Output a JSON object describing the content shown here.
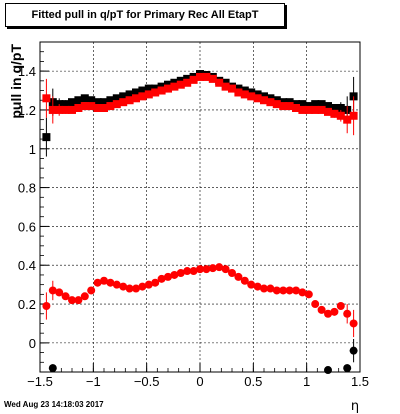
{
  "chart_data": {
    "type": "scatter",
    "title": "Fitted pull in q/pT for Primary Rec All EtapT",
    "xlabel": "η",
    "ylabel": "pull in q/pT",
    "xlim": [
      -1.5,
      1.5
    ],
    "ylim": [
      -0.15,
      1.55
    ],
    "grid": true,
    "legend": "none",
    "x_ticks": [
      {
        "v": -1.5,
        "label": "−1.5"
      },
      {
        "v": -1,
        "label": "−1"
      },
      {
        "v": -0.5,
        "label": "−0.5"
      },
      {
        "v": 0,
        "label": "0"
      },
      {
        "v": 0.5,
        "label": "0.5"
      },
      {
        "v": 1,
        "label": "1"
      },
      {
        "v": 1.5,
        "label": "1.5"
      }
    ],
    "y_ticks": [
      {
        "v": 0,
        "label": "0"
      },
      {
        "v": 0.2,
        "label": "0.2"
      },
      {
        "v": 0.4,
        "label": "0.4"
      },
      {
        "v": 0.6,
        "label": "0.6"
      },
      {
        "v": 0.8,
        "label": "0.8"
      },
      {
        "v": 1,
        "label": "1"
      },
      {
        "v": 1.2,
        "label": "1.2"
      },
      {
        "v": 1.4,
        "label": "1.4"
      }
    ],
    "series": [
      {
        "marker": "square",
        "color": "#000000",
        "x": [
          -1.44,
          -1.38,
          -1.32,
          -1.26,
          -1.2,
          -1.14,
          -1.08,
          -1.02,
          -0.96,
          -0.9,
          -0.84,
          -0.78,
          -0.72,
          -0.66,
          -0.6,
          -0.54,
          -0.48,
          -0.42,
          -0.36,
          -0.3,
          -0.24,
          -0.18,
          -0.12,
          -0.06,
          0,
          0.06,
          0.12,
          0.18,
          0.24,
          0.3,
          0.36,
          0.42,
          0.48,
          0.54,
          0.6,
          0.66,
          0.72,
          0.78,
          0.84,
          0.9,
          0.96,
          1.02,
          1.08,
          1.14,
          1.2,
          1.26,
          1.32,
          1.38,
          1.44
        ],
        "y": [
          1.06,
          1.24,
          1.23,
          1.23,
          1.24,
          1.25,
          1.26,
          1.25,
          1.24,
          1.24,
          1.25,
          1.26,
          1.27,
          1.28,
          1.29,
          1.3,
          1.31,
          1.31,
          1.32,
          1.33,
          1.34,
          1.35,
          1.36,
          1.37,
          1.385,
          1.38,
          1.37,
          1.35,
          1.34,
          1.32,
          1.31,
          1.3,
          1.29,
          1.28,
          1.27,
          1.26,
          1.25,
          1.24,
          1.24,
          1.23,
          1.23,
          1.22,
          1.23,
          1.23,
          1.22,
          1.21,
          1.21,
          1.2,
          1.27
        ],
        "err": [
          0.1,
          0.07,
          0.03,
          0.02,
          0.01,
          0.01,
          0.01,
          0.01,
          0.01,
          0.01,
          0.01,
          0.01,
          0.01,
          0.01,
          0.01,
          0.01,
          0.01,
          0.01,
          0.01,
          0.01,
          0.01,
          0.01,
          0.01,
          0.01,
          0.01,
          0.01,
          0.01,
          0.01,
          0.01,
          0.01,
          0.01,
          0.01,
          0.01,
          0.01,
          0.01,
          0.01,
          0.01,
          0.01,
          0.01,
          0.01,
          0.01,
          0.01,
          0.01,
          0.01,
          0.01,
          0.02,
          0.03,
          0.07,
          0.1
        ]
      },
      {
        "marker": "square",
        "color": "#ff0000",
        "x": [
          -1.44,
          -1.38,
          -1.32,
          -1.26,
          -1.2,
          -1.14,
          -1.08,
          -1.02,
          -0.96,
          -0.9,
          -0.84,
          -0.78,
          -0.72,
          -0.66,
          -0.6,
          -0.54,
          -0.48,
          -0.42,
          -0.36,
          -0.3,
          -0.24,
          -0.18,
          -0.12,
          -0.06,
          0,
          0.06,
          0.12,
          0.18,
          0.24,
          0.3,
          0.36,
          0.42,
          0.48,
          0.54,
          0.6,
          0.66,
          0.72,
          0.78,
          0.84,
          0.9,
          0.96,
          1.02,
          1.08,
          1.14,
          1.2,
          1.26,
          1.32,
          1.38,
          1.44
        ],
        "y": [
          1.26,
          1.2,
          1.2,
          1.2,
          1.2,
          1.21,
          1.22,
          1.22,
          1.21,
          1.21,
          1.22,
          1.23,
          1.24,
          1.25,
          1.26,
          1.27,
          1.28,
          1.29,
          1.3,
          1.31,
          1.32,
          1.33,
          1.34,
          1.355,
          1.37,
          1.37,
          1.36,
          1.34,
          1.32,
          1.31,
          1.29,
          1.28,
          1.27,
          1.26,
          1.25,
          1.24,
          1.23,
          1.22,
          1.22,
          1.21,
          1.2,
          1.2,
          1.2,
          1.2,
          1.19,
          1.18,
          1.17,
          1.15,
          1.17
        ],
        "err": [
          0.1,
          0.07,
          0.03,
          0.02,
          0.01,
          0.01,
          0.01,
          0.01,
          0.01,
          0.01,
          0.01,
          0.01,
          0.01,
          0.01,
          0.01,
          0.01,
          0.01,
          0.01,
          0.01,
          0.01,
          0.01,
          0.01,
          0.01,
          0.01,
          0.01,
          0.01,
          0.01,
          0.01,
          0.01,
          0.01,
          0.01,
          0.01,
          0.01,
          0.01,
          0.01,
          0.01,
          0.01,
          0.01,
          0.01,
          0.01,
          0.01,
          0.01,
          0.01,
          0.01,
          0.01,
          0.02,
          0.03,
          0.07,
          0.1
        ]
      },
      {
        "marker": "circle",
        "color": "#ff0000",
        "x": [
          -1.44,
          -1.38,
          -1.32,
          -1.26,
          -1.2,
          -1.14,
          -1.08,
          -1.02,
          -0.96,
          -0.9,
          -0.84,
          -0.78,
          -0.72,
          -0.66,
          -0.6,
          -0.54,
          -0.48,
          -0.42,
          -0.36,
          -0.3,
          -0.24,
          -0.18,
          -0.12,
          -0.06,
          0,
          0.06,
          0.12,
          0.18,
          0.24,
          0.3,
          0.36,
          0.42,
          0.48,
          0.54,
          0.6,
          0.66,
          0.72,
          0.78,
          0.84,
          0.9,
          0.96,
          1.02,
          1.08,
          1.14,
          1.2,
          1.26,
          1.32,
          1.38,
          1.44
        ],
        "y": [
          0.19,
          0.27,
          0.26,
          0.24,
          0.22,
          0.22,
          0.24,
          0.27,
          0.31,
          0.32,
          0.31,
          0.3,
          0.29,
          0.28,
          0.28,
          0.29,
          0.3,
          0.31,
          0.33,
          0.34,
          0.35,
          0.36,
          0.37,
          0.37,
          0.38,
          0.38,
          0.385,
          0.39,
          0.38,
          0.36,
          0.34,
          0.32,
          0.3,
          0.29,
          0.28,
          0.28,
          0.27,
          0.27,
          0.27,
          0.27,
          0.26,
          0.25,
          0.2,
          0.17,
          0.15,
          0.16,
          0.19,
          0.15,
          0.1
        ],
        "err": [
          0.07,
          0.05,
          0.02,
          0.01,
          0.01,
          0.01,
          0.01,
          0.01,
          0.01,
          0.01,
          0.01,
          0.01,
          0.01,
          0.01,
          0.01,
          0.01,
          0.01,
          0.01,
          0.01,
          0.01,
          0.01,
          0.01,
          0.01,
          0.01,
          0.01,
          0.01,
          0.01,
          0.01,
          0.01,
          0.01,
          0.01,
          0.01,
          0.01,
          0.01,
          0.01,
          0.01,
          0.01,
          0.01,
          0.01,
          0.01,
          0.01,
          0.01,
          0.01,
          0.01,
          0.01,
          0.01,
          0.02,
          0.05,
          0.07
        ]
      },
      {
        "marker": "circle",
        "color": "#000000",
        "x": [
          -1.38,
          1.2,
          1.38,
          1.44
        ],
        "y": [
          -0.13,
          -0.14,
          -0.13,
          -0.04
        ],
        "err": [
          0.02,
          0.01,
          0.02,
          0.06
        ]
      }
    ]
  },
  "footer": {
    "timestamp": "Wed Aug 23 14:18:03 2017"
  }
}
